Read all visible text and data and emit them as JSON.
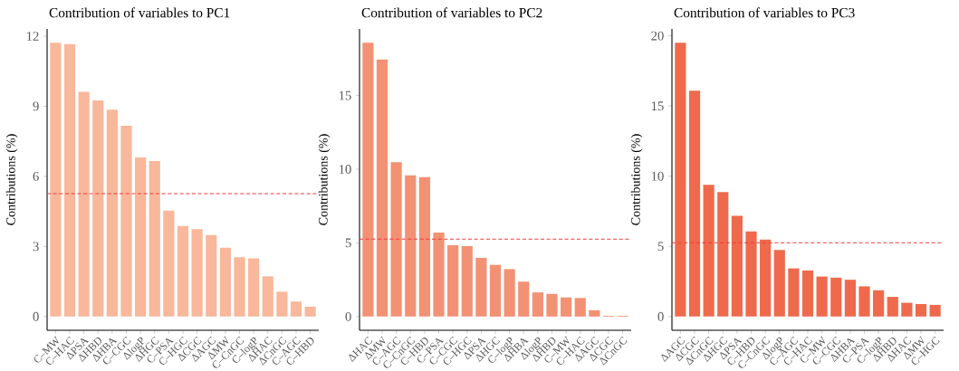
{
  "chart_data": [
    {
      "type": "bar",
      "title": "Contribution of variables to PC1",
      "ylabel": "Contributions (%)",
      "categories": [
        "C–MW",
        "C–HAC",
        "ΔPSA",
        "ΔHBD",
        "ΔHBA",
        "C–CGC",
        "ΔlogP",
        "ΔHGC",
        "C–PSA",
        "C–HGC",
        "ΔCGC",
        "ΔAGC",
        "ΔMW",
        "C–CnGC",
        "C–logP",
        "ΔHAC",
        "ΔCnGC",
        "C–AGC",
        "C–HBD"
      ],
      "values": [
        11.72,
        11.66,
        9.62,
        9.25,
        8.85,
        8.16,
        6.81,
        6.65,
        4.53,
        3.87,
        3.74,
        3.49,
        2.94,
        2.54,
        2.49,
        1.72,
        1.06,
        0.64,
        0.42
      ],
      "color": "#f9b79b",
      "ylim": [
        -0.59,
        12.31
      ],
      "yticks": [
        0,
        3,
        6,
        9,
        12
      ],
      "ref_lines": [
        {
          "axis": "y",
          "value": 5.26,
          "color": "#f03b3b",
          "line_style": "dashed"
        }
      ]
    },
    {
      "type": "bar",
      "title": "Contribution of variables to PC2",
      "ylabel": "Contributions (%)",
      "categories": [
        "ΔHAC",
        "ΔMW",
        "C–AGC",
        "C–CnGC",
        "C–HBD",
        "C–PSA",
        "C–CGC",
        "C–HGC",
        "ΔPSA",
        "ΔHGC",
        "C–logP",
        "ΔHBA",
        "ΔlogP",
        "ΔHBD",
        "C–MW",
        "C–HAC",
        "ΔAGC",
        "ΔCGC",
        "ΔCnGC"
      ],
      "values": [
        18.59,
        17.45,
        10.48,
        9.59,
        9.47,
        5.7,
        4.84,
        4.78,
        3.99,
        3.51,
        3.22,
        2.37,
        1.64,
        1.54,
        1.3,
        1.26,
        0.43,
        0.05,
        0.05
      ],
      "color": "#f39174",
      "ylim": [
        -0.93,
        19.52
      ],
      "yticks": [
        0,
        5,
        10,
        15
      ],
      "ref_lines": [
        {
          "axis": "y",
          "value": 5.26,
          "color": "#f03b3b",
          "line_style": "dashed"
        }
      ]
    },
    {
      "type": "bar",
      "title": "Contribution of variables to PC3",
      "ylabel": "Contributions (%)",
      "categories": [
        "ΔAGC",
        "ΔCGC",
        "ΔCnGC",
        "ΔHGC",
        "ΔPSA",
        "C–HBD",
        "C–CnGC",
        "ΔlogP",
        "C–AGC",
        "C–HAC",
        "C–MW",
        "C–CGC",
        "ΔHBA",
        "C–PSA",
        "C–logP",
        "ΔHBD",
        "ΔHAC",
        "ΔMW",
        "C–HGC"
      ],
      "values": [
        19.51,
        16.09,
        9.38,
        8.87,
        7.17,
        6.06,
        5.49,
        4.74,
        3.43,
        3.28,
        2.85,
        2.77,
        2.62,
        2.15,
        1.87,
        1.4,
        0.98,
        0.89,
        0.83
      ],
      "color": "#ef6a4c",
      "ylim": [
        -0.98,
        20.49
      ],
      "yticks": [
        0,
        5,
        10,
        15,
        20
      ],
      "ref_lines": [
        {
          "axis": "y",
          "value": 5.26,
          "color": "#f03b3b",
          "line_style": "dashed"
        }
      ]
    }
  ]
}
